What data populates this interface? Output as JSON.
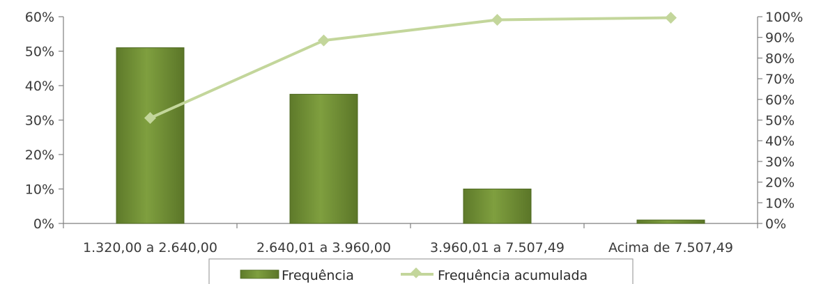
{
  "chart_data": {
    "type": "bar",
    "categories": [
      "1.320,00 a 2.640,00",
      "2.640,01 a 3.960,00",
      "3.960,01 a 7.507,49",
      "Acima de 7.507,49"
    ],
    "series": [
      {
        "name": "Frequência",
        "type": "bar",
        "axis": "left",
        "values": [
          51,
          37.5,
          10,
          1
        ],
        "color": "#76933c"
      },
      {
        "name": "Frequência acumulada",
        "type": "line",
        "axis": "right",
        "values": [
          51,
          88.5,
          98.5,
          99.5
        ],
        "color": "#c3d69b"
      }
    ],
    "y_left": {
      "ylim": [
        0,
        60
      ],
      "ticks": [
        "0%",
        "10%",
        "20%",
        "30%",
        "40%",
        "50%",
        "60%"
      ]
    },
    "y_right": {
      "ylim": [
        0,
        100
      ],
      "ticks": [
        "0%",
        "10%",
        "20%",
        "30%",
        "40%",
        "50%",
        "60%",
        "70%",
        "80%",
        "90%",
        "100%"
      ]
    },
    "title": "",
    "xlabel": "",
    "ylabel": "",
    "grid": false,
    "legend": "bottom"
  }
}
